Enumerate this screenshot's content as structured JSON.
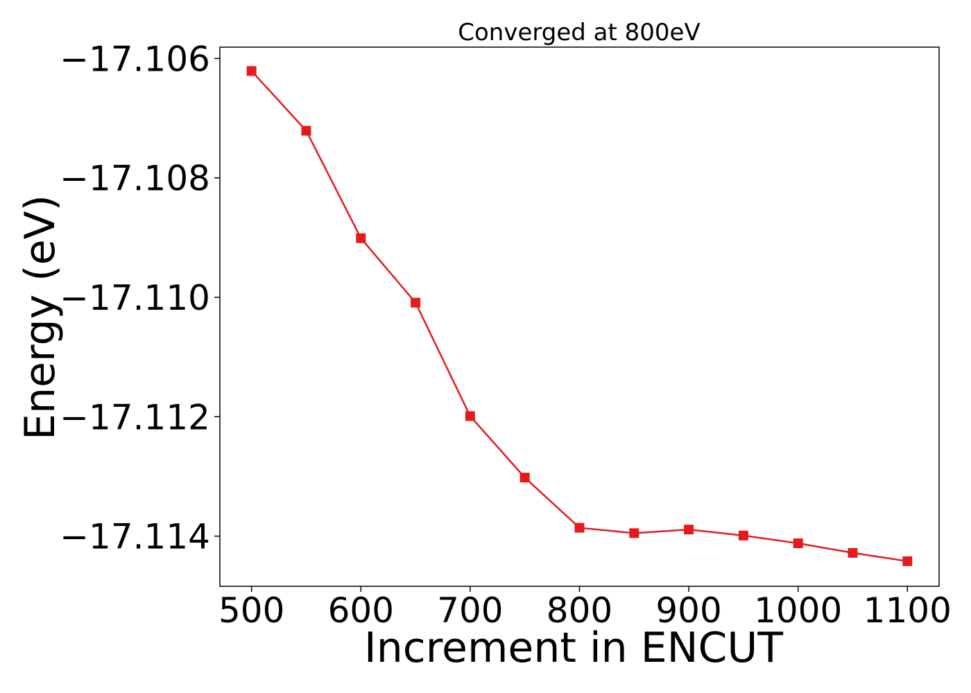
{
  "chart_data": {
    "type": "line",
    "title": "Converged at 800eV",
    "xlabel": "Increment in ENCUT",
    "ylabel": "Energy (eV)",
    "x": [
      500,
      550,
      600,
      650,
      700,
      750,
      800,
      850,
      900,
      950,
      1000,
      1050,
      1100
    ],
    "series": [
      {
        "values": [
          -17.10621,
          -17.10721,
          -17.10901,
          -17.11009,
          -17.11199,
          -17.11302,
          -17.11386,
          -17.11395,
          -17.11389,
          -17.11399,
          -17.11412,
          -17.11428,
          -17.11442
        ],
        "color": "#e41a1c",
        "marker": "square"
      }
    ],
    "xlim": [
      471,
      1129
    ],
    "ylim": [
      -17.11484,
      -17.10581
    ],
    "xticks": [
      500,
      600,
      700,
      800,
      900,
      1000,
      1100
    ],
    "yticks": [
      -17.106,
      -17.108,
      -17.11,
      -17.112,
      -17.114
    ],
    "xtick_labels": [
      "500",
      "600",
      "700",
      "800",
      "900",
      "1000",
      "1100"
    ],
    "ytick_labels": [
      "−17.106",
      "−17.108",
      "−17.110",
      "−17.112",
      "−17.114"
    ],
    "grid": false,
    "legend": "none"
  }
}
